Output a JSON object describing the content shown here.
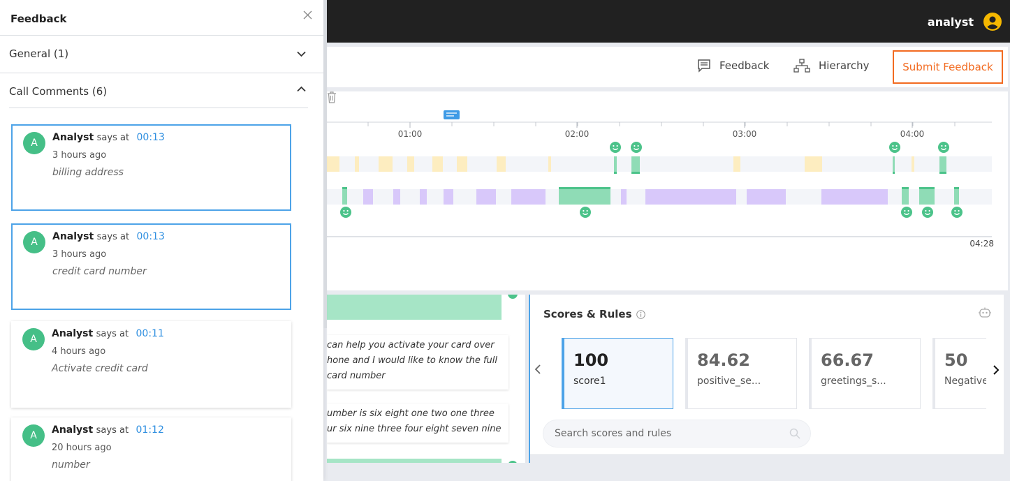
{
  "header": {
    "user_name": "analyst"
  },
  "toolbar": {
    "feedback_label": "Feedback",
    "hierarchy_label": "Hierarchy",
    "submit_label": "Submit Feedback"
  },
  "timeline": {
    "ticks": [
      "01:00",
      "02:00",
      "03:00",
      "04:00"
    ],
    "duration": "04:28"
  },
  "transcript": {
    "messages": [
      "can help you activate your card over\nhone and I would like to know the full\n card number",
      "umber is six eight one two one three\nur six nine three four eight seven nine"
    ]
  },
  "scores": {
    "title": "Scores & Rules",
    "cards": [
      {
        "value": "100",
        "name": "score1"
      },
      {
        "value": "84.62",
        "name": "positive_se..."
      },
      {
        "value": "66.67",
        "name": "greetings_s..."
      },
      {
        "value": "50",
        "name": "Negative"
      }
    ],
    "search_placeholder": "Search scores and rules"
  },
  "drawer": {
    "title": "Feedback",
    "sections": [
      {
        "label": "General (1)"
      },
      {
        "label": "Call Comments (6)"
      }
    ],
    "comments": [
      {
        "avatar": "A",
        "author": "Analyst",
        "says": "says at",
        "time": "00:13",
        "ago": "3 hours ago",
        "text": "billing address"
      },
      {
        "avatar": "A",
        "author": "Analyst",
        "says": "says at",
        "time": "00:13",
        "ago": "3 hours ago",
        "text": "credit card number"
      },
      {
        "avatar": "A",
        "author": "Analyst",
        "says": "says at",
        "time": "00:11",
        "ago": "4 hours ago",
        "text": "Activate credit card"
      },
      {
        "avatar": "A",
        "author": "Analyst",
        "says": "says at",
        "time": "01:12",
        "ago": "20 hours ago",
        "text": "number"
      }
    ]
  },
  "colors": {
    "accent": "#f26b21",
    "link": "#2f8fe0",
    "positive": "#4cc38a",
    "agent_segment": "#fdedc0",
    "customer_segment": "#d8c8fa",
    "selected_border": "#4da3e8"
  }
}
